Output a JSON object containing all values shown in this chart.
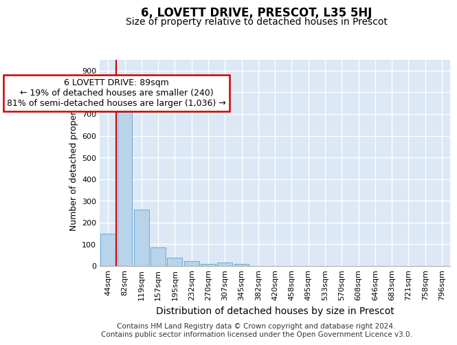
{
  "title_line1": "6, LOVETT DRIVE, PRESCOT, L35 5HJ",
  "title_line2": "Size of property relative to detached houses in Prescot",
  "xlabel": "Distribution of detached houses by size in Prescot",
  "ylabel": "Number of detached properties",
  "categories": [
    "44sqm",
    "82sqm",
    "119sqm",
    "157sqm",
    "195sqm",
    "232sqm",
    "270sqm",
    "307sqm",
    "345sqm",
    "382sqm",
    "420sqm",
    "458sqm",
    "495sqm",
    "533sqm",
    "570sqm",
    "608sqm",
    "646sqm",
    "683sqm",
    "721sqm",
    "758sqm",
    "796sqm"
  ],
  "values": [
    148,
    710,
    260,
    85,
    37,
    22,
    10,
    15,
    10,
    0,
    0,
    0,
    0,
    0,
    0,
    0,
    0,
    0,
    0,
    0,
    0
  ],
  "bar_color": "#b8d4ea",
  "bar_edge_color": "#6aaad4",
  "vline_color": "#cc0000",
  "vline_x_index": 1,
  "annotation_text": "6 LOVETT DRIVE: 89sqm\n← 19% of detached houses are smaller (240)\n81% of semi-detached houses are larger (1,036) →",
  "annotation_box_facecolor": "#ffffff",
  "annotation_box_edgecolor": "#cc0000",
  "ylim": [
    0,
    950
  ],
  "yticks": [
    0,
    100,
    200,
    300,
    400,
    500,
    600,
    700,
    800,
    900
  ],
  "footer_line1": "Contains HM Land Registry data © Crown copyright and database right 2024.",
  "footer_line2": "Contains public sector information licensed under the Open Government Licence v3.0.",
  "plot_bg_color": "#dce8f5",
  "grid_color": "#ffffff",
  "fig_bg_color": "#ffffff",
  "title_fontsize": 12,
  "subtitle_fontsize": 10,
  "axis_label_fontsize": 9,
  "tick_fontsize": 8,
  "annotation_fontsize": 9,
  "footer_fontsize": 7.5
}
